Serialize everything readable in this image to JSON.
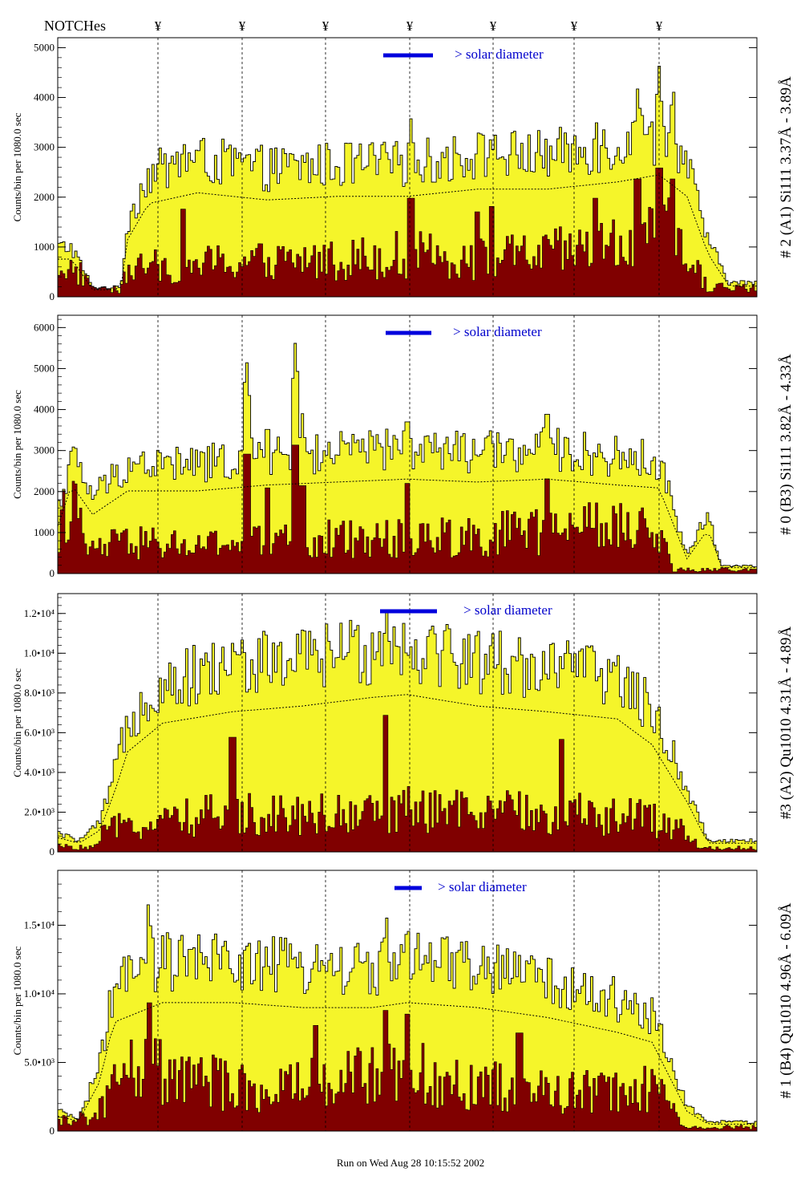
{
  "header": {
    "notches_label": "NOTCHes",
    "notch_symbol": "¥"
  },
  "footer": {
    "run_text": "Run on Wed Aug 28 10:15:52 2002"
  },
  "colors": {
    "total_fill": "#f5f52a",
    "dark_fill": "#800000",
    "solar_bar": "#0000dd",
    "frame": "#000000"
  },
  "chart_data": [
    {
      "type": "bar",
      "title": "# 2 (A1) Si111  3.37Å - 3.89Å",
      "ylabel": "Counts/bin per    1080.0 sec",
      "ylim": [
        0,
        5200
      ],
      "yticks": [
        "0",
        "1000",
        "2000",
        "3000",
        "4000",
        "5000"
      ],
      "annotation": "> solar diameter",
      "series": [
        {
          "envelope": [
            [
              0,
              1050
            ],
            [
              0.02,
              1050
            ],
            [
              0.05,
              200
            ],
            [
              0.09,
              200
            ],
            [
              0.1,
              1600
            ],
            [
              0.13,
              2600
            ],
            [
              0.2,
              2900
            ],
            [
              0.3,
              2700
            ],
            [
              0.4,
              2800
            ],
            [
              0.5,
              2800
            ],
            [
              0.6,
              3000
            ],
            [
              0.7,
              3000
            ],
            [
              0.8,
              3200
            ],
            [
              0.86,
              3400
            ],
            [
              0.9,
              2800
            ],
            [
              0.93,
              1200
            ],
            [
              0.96,
              300
            ],
            [
              1,
              300
            ]
          ],
          "dark_envelope": [
            [
              0,
              700
            ],
            [
              0.03,
              500
            ],
            [
              0.09,
              100
            ],
            [
              0.1,
              600
            ],
            [
              0.2,
              700
            ],
            [
              0.4,
              800
            ],
            [
              0.5,
              900
            ],
            [
              0.6,
              800
            ],
            [
              0.7,
              900
            ],
            [
              0.8,
              1100
            ],
            [
              0.87,
              1400
            ],
            [
              0.9,
              900
            ],
            [
              0.93,
              200
            ],
            [
              1,
              200
            ]
          ],
          "spikes": [
            [
              0.505,
              3600
            ],
            [
              0.6,
              3100
            ],
            [
              0.77,
              3600
            ],
            [
              0.83,
              4300
            ],
            [
              0.86,
              4700
            ],
            [
              0.88,
              4300
            ],
            [
              0.18,
              3200
            ],
            [
              0.62,
              3300
            ]
          ]
        }
      ]
    },
    {
      "type": "bar",
      "title": "# 0 (B3) Si111  3.82Å - 4.33Å",
      "ylabel": "Counts/bin per    1080.0 sec",
      "ylim": [
        0,
        6300
      ],
      "yticks": [
        "0",
        "1000",
        "2000",
        "3000",
        "4000",
        "5000",
        "6000"
      ],
      "annotation": "> solar diameter",
      "series": [
        {
          "envelope": [
            [
              0,
              1600
            ],
            [
              0.02,
              3000
            ],
            [
              0.05,
              2000
            ],
            [
              0.1,
              2800
            ],
            [
              0.2,
              2800
            ],
            [
              0.3,
              3000
            ],
            [
              0.4,
              3100
            ],
            [
              0.5,
              3200
            ],
            [
              0.6,
              3100
            ],
            [
              0.7,
              3200
            ],
            [
              0.8,
              3000
            ],
            [
              0.86,
              2900
            ],
            [
              0.9,
              500
            ],
            [
              0.93,
              1500
            ],
            [
              0.95,
              200
            ],
            [
              1,
              200
            ]
          ],
          "dark_envelope": [
            [
              0,
              1200
            ],
            [
              0.02,
              2000
            ],
            [
              0.04,
              600
            ],
            [
              0.1,
              800
            ],
            [
              0.2,
              700
            ],
            [
              0.3,
              800
            ],
            [
              0.4,
              900
            ],
            [
              0.5,
              900
            ],
            [
              0.6,
              1000
            ],
            [
              0.7,
              1100
            ],
            [
              0.8,
              1200
            ],
            [
              0.86,
              1000
            ],
            [
              0.88,
              100
            ],
            [
              1,
              100
            ]
          ],
          "spikes": [
            [
              0.27,
              5300
            ],
            [
              0.34,
              5700
            ],
            [
              0.5,
              4000
            ],
            [
              0.7,
              4200
            ],
            [
              0.3,
              3800
            ],
            [
              0.35,
              3900
            ]
          ]
        }
      ]
    },
    {
      "type": "bar",
      "title": "#3 (A2) Qu1010  4.31Å - 4.89Å",
      "ylabel": "Counts/bin per    1080.0 sec",
      "ylim": [
        0,
        13000
      ],
      "yticks": [
        "0",
        "2.0•10³",
        "4.0•10³",
        "6.0•10³",
        "8.0•10³",
        "1.0•10⁴",
        "1.2•10⁴"
      ],
      "annotation": "> solar diameter",
      "series": [
        {
          "envelope": [
            [
              0,
              1000
            ],
            [
              0.03,
              600
            ],
            [
              0.06,
              1500
            ],
            [
              0.08,
              4000
            ],
            [
              0.1,
              7000
            ],
            [
              0.15,
              9000
            ],
            [
              0.25,
              9800
            ],
            [
              0.35,
              10200
            ],
            [
              0.45,
              10800
            ],
            [
              0.5,
              11000
            ],
            [
              0.6,
              10200
            ],
            [
              0.7,
              9800
            ],
            [
              0.8,
              9300
            ],
            [
              0.85,
              7500
            ],
            [
              0.9,
              3500
            ],
            [
              0.93,
              600
            ],
            [
              1,
              600
            ]
          ],
          "dark_envelope": [
            [
              0,
              300
            ],
            [
              0.05,
              200
            ],
            [
              0.07,
              1200
            ],
            [
              0.2,
              1900
            ],
            [
              0.3,
              2100
            ],
            [
              0.4,
              2000
            ],
            [
              0.5,
              2200
            ],
            [
              0.6,
              2100
            ],
            [
              0.7,
              2000
            ],
            [
              0.8,
              2000
            ],
            [
              0.88,
              1500
            ],
            [
              0.92,
              200
            ],
            [
              1,
              200
            ]
          ],
          "spikes": [
            [
              0.47,
              12500
            ],
            [
              0.25,
              10500
            ],
            [
              0.72,
              10300
            ]
          ]
        }
      ]
    },
    {
      "type": "bar",
      "title": "# 1 (B4) Qu1010 4.96Å - 6.09Å",
      "ylabel": "Counts/bin per    1080.0 sec",
      "ylim": [
        0,
        19000
      ],
      "yticks": [
        "0",
        "5.0•10³",
        "1.0•10⁴",
        "1.5•10⁴"
      ],
      "annotation": "> solar diameter",
      "series": [
        {
          "envelope": [
            [
              0,
              1500
            ],
            [
              0.03,
              1000
            ],
            [
              0.06,
              5000
            ],
            [
              0.08,
              11000
            ],
            [
              0.15,
              13000
            ],
            [
              0.25,
              13000
            ],
            [
              0.35,
              12500
            ],
            [
              0.45,
              12500
            ],
            [
              0.5,
              13000
            ],
            [
              0.6,
              12500
            ],
            [
              0.7,
              11500
            ],
            [
              0.8,
              10000
            ],
            [
              0.85,
              9000
            ],
            [
              0.9,
              2000
            ],
            [
              0.93,
              700
            ],
            [
              1,
              700
            ]
          ],
          "dark_envelope": [
            [
              0,
              800
            ],
            [
              0.05,
              1000
            ],
            [
              0.1,
              5000
            ],
            [
              0.2,
              4000
            ],
            [
              0.3,
              3000
            ],
            [
              0.4,
              4000
            ],
            [
              0.5,
              4500
            ],
            [
              0.6,
              3500
            ],
            [
              0.7,
              3000
            ],
            [
              0.8,
              3000
            ],
            [
              0.86,
              3500
            ],
            [
              0.9,
              300
            ],
            [
              1,
              300
            ]
          ],
          "spikes": [
            [
              0.13,
              17000
            ],
            [
              0.47,
              16000
            ],
            [
              0.5,
              15500
            ],
            [
              0.37,
              14000
            ],
            [
              0.66,
              13000
            ]
          ]
        }
      ]
    }
  ]
}
